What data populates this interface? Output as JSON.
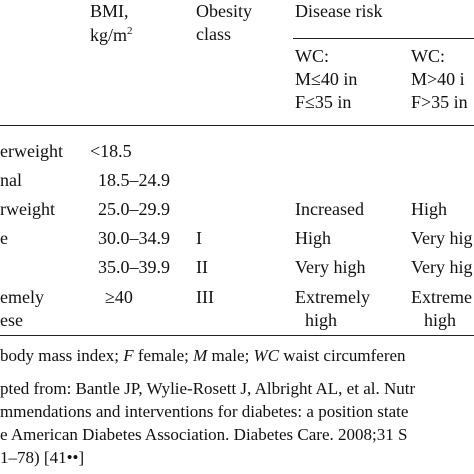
{
  "header": {
    "bmi": "BMI,",
    "bmi_unit": "kg/m",
    "bmi_unit_exp": "2",
    "obesity_line1": "Obesity",
    "obesity_line2": "class",
    "disease_risk": "Disease risk",
    "wc1": {
      "l1": "WC:",
      "l2": "M≤40 in",
      "l3": "F≤35 in"
    },
    "wc2": {
      "l1": "WC:",
      "l2": "M>40 i",
      "l3": "F>35 in"
    }
  },
  "rows": [
    {
      "category": "erweight",
      "bmi": "<18.5",
      "class": "",
      "risk1": "",
      "risk2": ""
    },
    {
      "category": "nal",
      "bmi": "18.5–24.9",
      "class": "",
      "risk1": "",
      "risk2": ""
    },
    {
      "category": "rweight",
      "bmi": "25.0–29.9",
      "class": "",
      "risk1": "Increased",
      "risk2": "High"
    },
    {
      "category": "e",
      "bmi": "30.0–34.9",
      "class": "I",
      "risk1": "High",
      "risk2": "Very hig"
    },
    {
      "category": "",
      "bmi": "35.0–39.9",
      "class": "II",
      "risk1": "Very high",
      "risk2": "Very hig"
    },
    {
      "category": "emely",
      "category_l2": "ese",
      "bmi": "≥40",
      "class": "III",
      "risk1": "Extremely",
      "risk1_l2": "high",
      "risk2": "Extreme",
      "risk2_l2": "high"
    }
  ],
  "notes": {
    "line1_prefix": "body mass index; ",
    "line1_f": "F",
    "line1_mid1": " female; ",
    "line1_m": "M",
    "line1_mid2": " male; ",
    "line1_wc": "WC",
    "line1_end": " waist circumferen",
    "line2": "pted from: Bantle JP, Wylie-Rosett J, Albright AL, et al. Nutr",
    "line3": "mmendations and interventions for diabetes: a position state",
    "line4": "e American Diabetes Association. Diabetes Care. 2008;31 S",
    "line5": "1–78) [41••]"
  }
}
